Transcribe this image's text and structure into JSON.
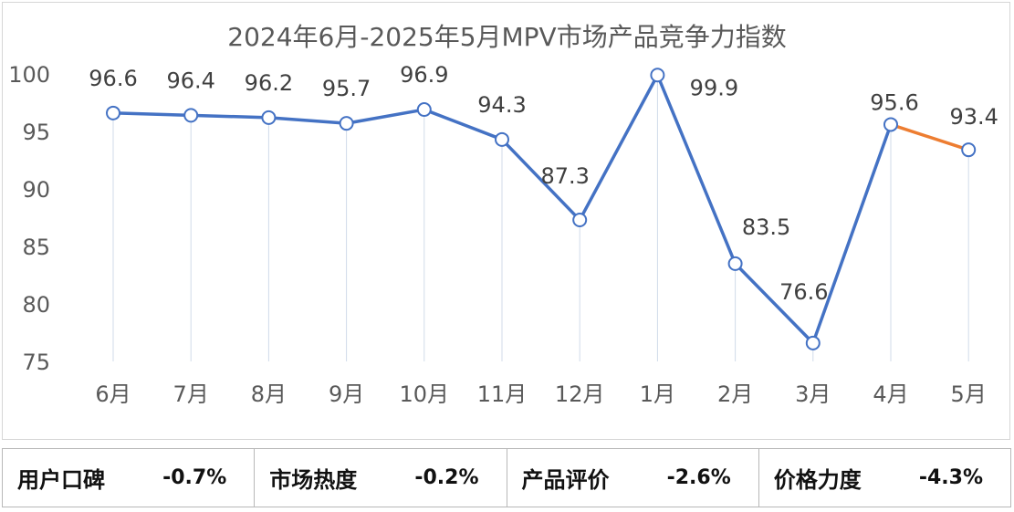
{
  "chart_data": {
    "type": "line",
    "title": "2024年6月-2025年5月MPV市场产品竞争力指数",
    "categories": [
      "6月",
      "7月",
      "8月",
      "9月",
      "10月",
      "11月",
      "12月",
      "1月",
      "2月",
      "3月",
      "4月",
      "5月"
    ],
    "values": [
      96.6,
      96.4,
      96.2,
      95.7,
      96.9,
      94.3,
      87.3,
      99.9,
      83.5,
      76.6,
      95.6,
      93.4
    ],
    "ylim": [
      75,
      100
    ],
    "yticks": [
      75,
      80,
      85,
      90,
      95,
      100
    ],
    "xlabel": "",
    "ylabel": "",
    "grid": false,
    "drop_lines": true,
    "colors": {
      "main": "#4472c4",
      "highlight": "#ed7d31",
      "drop_line": "#d0dbe9",
      "marker_fill": "#ffffff"
    }
  },
  "metrics": [
    {
      "label": "用户口碑",
      "value": "-0.7%"
    },
    {
      "label": "市场热度",
      "value": "-0.2%"
    },
    {
      "label": "产品评价",
      "value": "-2.6%"
    },
    {
      "label": "价格力度",
      "value": "-4.3%"
    }
  ]
}
